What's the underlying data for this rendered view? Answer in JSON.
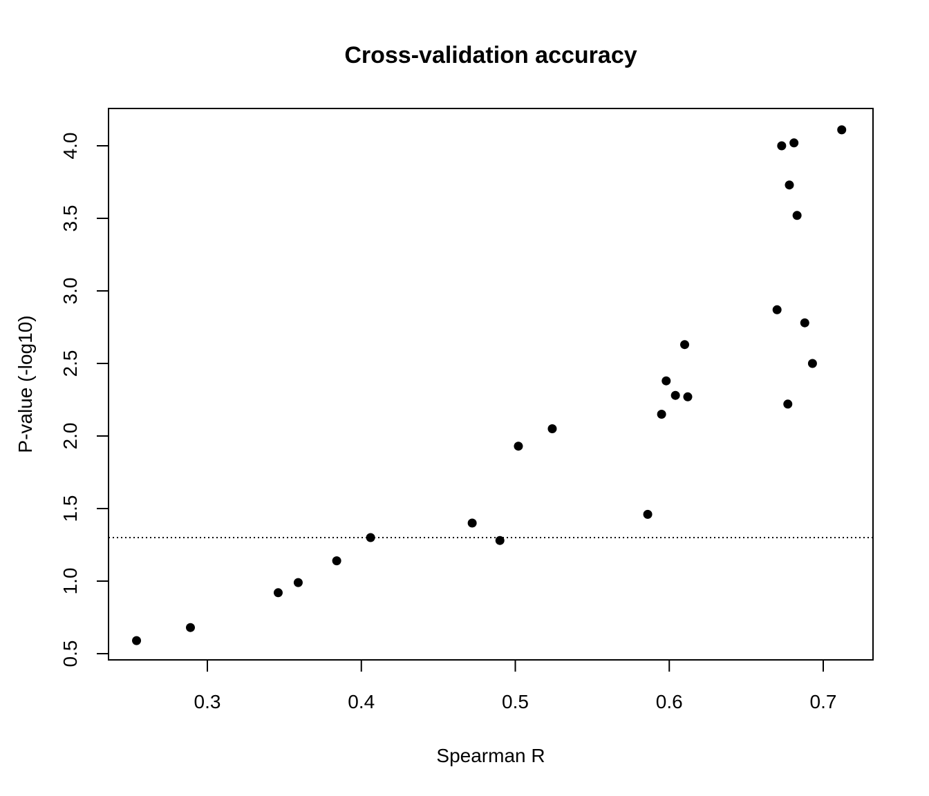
{
  "chart_data": {
    "type": "scatter",
    "title": "Cross-validation accuracy",
    "xlabel": "Spearman R",
    "ylabel": "P-value (-log10)",
    "xlim": [
      0.25,
      0.715
    ],
    "ylim": [
      0.55,
      4.15
    ],
    "x_ticks": [
      0.3,
      0.4,
      0.5,
      0.6,
      0.7
    ],
    "x_tick_labels": [
      "0.3",
      "0.4",
      "0.5",
      "0.6",
      "0.7"
    ],
    "y_ticks": [
      0.5,
      1.0,
      1.5,
      2.0,
      2.5,
      3.0,
      3.5,
      4.0
    ],
    "y_tick_labels": [
      "0.5",
      "1.0",
      "1.5",
      "2.0",
      "2.5",
      "3.0",
      "3.5",
      "4.0"
    ],
    "reference_line": {
      "y": 1.3,
      "style": "dotted"
    },
    "grid": false,
    "legend": "none",
    "point_color": "#000000",
    "points": [
      {
        "x": 0.254,
        "y": 0.59
      },
      {
        "x": 0.289,
        "y": 0.68
      },
      {
        "x": 0.346,
        "y": 0.92
      },
      {
        "x": 0.359,
        "y": 0.99
      },
      {
        "x": 0.384,
        "y": 1.14
      },
      {
        "x": 0.406,
        "y": 1.3
      },
      {
        "x": 0.472,
        "y": 1.4
      },
      {
        "x": 0.49,
        "y": 1.28
      },
      {
        "x": 0.502,
        "y": 1.93
      },
      {
        "x": 0.524,
        "y": 2.05
      },
      {
        "x": 0.586,
        "y": 1.46
      },
      {
        "x": 0.595,
        "y": 2.15
      },
      {
        "x": 0.598,
        "y": 2.38
      },
      {
        "x": 0.604,
        "y": 2.28
      },
      {
        "x": 0.61,
        "y": 2.63
      },
      {
        "x": 0.612,
        "y": 2.27
      },
      {
        "x": 0.67,
        "y": 2.87
      },
      {
        "x": 0.673,
        "y": 4.0
      },
      {
        "x": 0.677,
        "y": 2.22
      },
      {
        "x": 0.678,
        "y": 3.73
      },
      {
        "x": 0.681,
        "y": 4.02
      },
      {
        "x": 0.683,
        "y": 3.52
      },
      {
        "x": 0.688,
        "y": 2.78
      },
      {
        "x": 0.693,
        "y": 2.5
      },
      {
        "x": 0.712,
        "y": 4.11
      }
    ]
  }
}
